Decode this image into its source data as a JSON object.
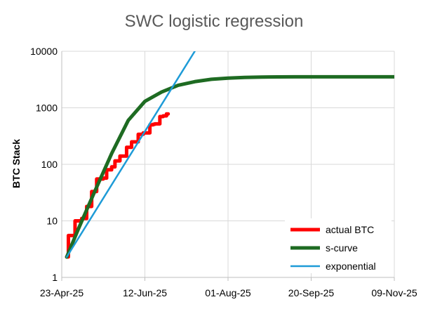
{
  "chart_data": {
    "type": "line",
    "title": "SWC logistic regression",
    "xlabel": "",
    "ylabel": "BTC Stack",
    "yscale": "log",
    "ylim": [
      1,
      10000
    ],
    "xlim_days": [
      0,
      200
    ],
    "x_ticks": [
      {
        "day": 0,
        "label": "23-Apr-25"
      },
      {
        "day": 50,
        "label": "12-Jun-25"
      },
      {
        "day": 100,
        "label": "01-Aug-25"
      },
      {
        "day": 150,
        "label": "20-Sep-25"
      },
      {
        "day": 200,
        "label": "09-Nov-25"
      }
    ],
    "y_ticks": [
      {
        "value": 1,
        "label": "1"
      },
      {
        "value": 10,
        "label": "10"
      },
      {
        "value": 100,
        "label": "100"
      },
      {
        "value": 1000,
        "label": "1000"
      },
      {
        "value": 10000,
        "label": "10000"
      }
    ],
    "grid": true,
    "legend_position": "bottom-right",
    "series": [
      {
        "name": "actual BTC",
        "color": "#ff0000",
        "style": "step",
        "x": [
          3,
          4,
          7,
          8,
          11,
          12,
          15,
          16,
          18,
          19,
          21,
          23,
          25,
          27,
          29,
          30,
          32,
          34,
          35,
          37,
          39,
          41,
          42,
          44,
          46,
          48,
          49,
          51,
          53,
          55,
          56,
          59,
          61,
          63,
          64
        ],
        "values": [
          2.3,
          5.5,
          5.5,
          10,
          10,
          11,
          18,
          18,
          33,
          33,
          55,
          55,
          57,
          80,
          80,
          90,
          115,
          115,
          140,
          140,
          200,
          200,
          250,
          250,
          340,
          340,
          360,
          360,
          500,
          510,
          520,
          700,
          720,
          780,
          780
        ]
      },
      {
        "name": "s-curve",
        "color": "#1e6b22",
        "style": "line",
        "x": [
          3,
          10,
          20,
          30,
          40,
          50,
          60,
          70,
          80,
          90,
          100,
          110,
          120,
          130,
          140,
          150,
          160,
          170,
          180,
          190,
          200
        ],
        "values": [
          2.3,
          7.2,
          34,
          155,
          600,
          1300,
          1900,
          2500,
          2900,
          3200,
          3350,
          3450,
          3500,
          3520,
          3530,
          3530,
          3530,
          3530,
          3530,
          3530,
          3530
        ]
      },
      {
        "name": "exponential",
        "color": "#1e9bd7",
        "style": "line",
        "x": [
          3,
          80
        ],
        "values": [
          2.3,
          10000
        ]
      }
    ]
  }
}
